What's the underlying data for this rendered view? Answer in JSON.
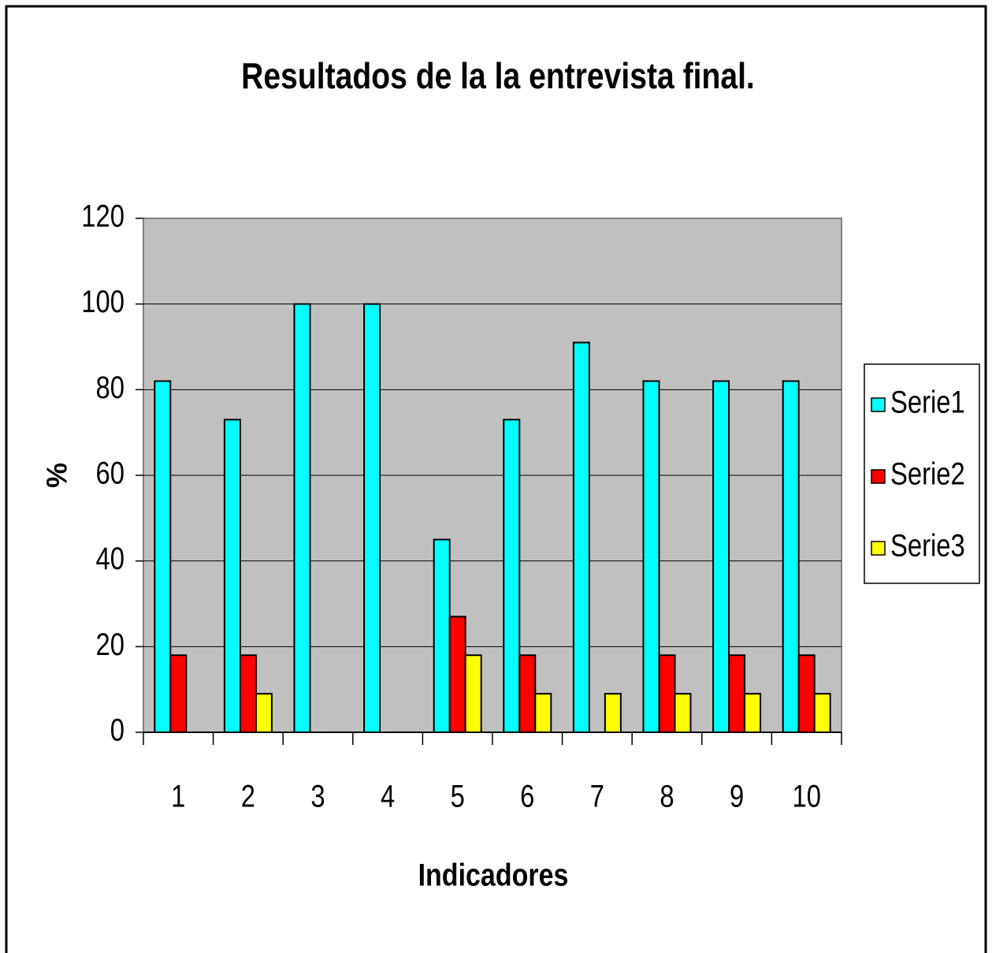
{
  "chart_data": {
    "type": "bar",
    "title": "Resultados de la la  entrevista final.",
    "x_label": "Indicadores",
    "y_label": "%",
    "categories": [
      "1",
      "2",
      "3",
      "4",
      "5",
      "6",
      "7",
      "8",
      "9",
      "10"
    ],
    "series": [
      {
        "name": "Serie1",
        "color": "#00ffff",
        "values": [
          82,
          73,
          100,
          100,
          45,
          73,
          91,
          82,
          82,
          82
        ]
      },
      {
        "name": "Serie2",
        "color": "#ff0000",
        "values": [
          18,
          18,
          0,
          0,
          27,
          18,
          0,
          18,
          18,
          18
        ]
      },
      {
        "name": "Serie3",
        "color": "#ffff00",
        "values": [
          0,
          9,
          0,
          0,
          18,
          9,
          9,
          9,
          9,
          9
        ]
      }
    ],
    "ylim": [
      0,
      120
    ],
    "yticks": [
      0,
      20,
      40,
      60,
      80,
      100,
      120
    ],
    "grid": true,
    "legend": "right"
  }
}
